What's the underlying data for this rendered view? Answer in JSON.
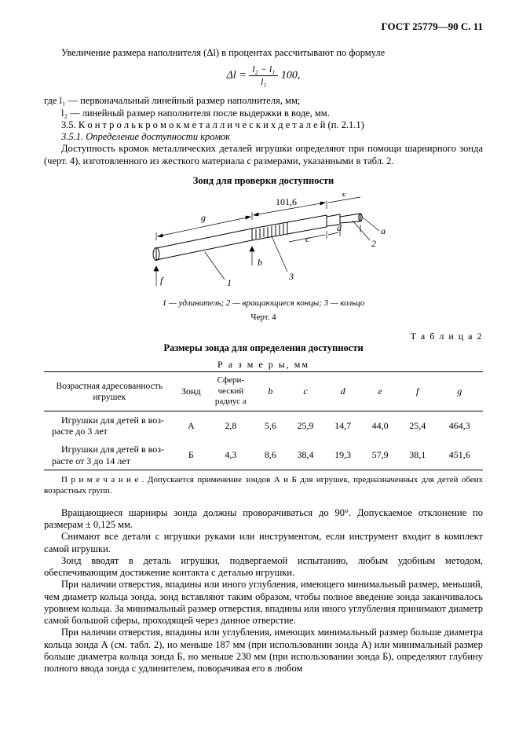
{
  "header": "ГОСТ 25779—90 С. 11",
  "p1": "Увеличение размера наполнителя (Δl) в процентах рассчитывают по формуле",
  "formula_lhs": "Δl = ",
  "formula_num": "l₂ − l₁",
  "formula_den": "l₁",
  "formula_rhs": " 100,",
  "p2a": "где l₁ — первоначальный линейный размер наполнителя, мм;",
  "p2b": "l₂ — линейный размер наполнителя после выдержки в воде, мм.",
  "p3": "3.5. К о н т р о л ь   к р о м о к   м е т а л л и ч е с к и х   д е т а л е й  (п. 2.1.1)",
  "p4": "3.5.1. Определение доступности кромок",
  "p5": "Доступность кромок металлических деталей игрушки определяют при помощи шарнирного зонда (черт. 4), изготовленного из жесткого материала с размерами, указанными в табл. 2.",
  "figcap": "Зонд для проверки доступности",
  "figsub": "1 — удлинитель; 2 — вращающиеся концы; 3 — кольцо",
  "figno": "Черт. 4",
  "tablabel": "Т а б л и ц а  2",
  "tabcap": "Размеры зонда для определения доступности",
  "razm": "Р а з м е р ы, мм",
  "table": {
    "header": [
      "Возрастная адресованность игрушек",
      "Зонд",
      "Сфери-\nческий\nрадиус a",
      "b",
      "c",
      "d",
      "e",
      "f",
      "g"
    ],
    "rows": [
      [
        "Игрушки для детей в воз-\nрасте до 3 лет",
        "А",
        "2,8",
        "5,6",
        "25,9",
        "14,7",
        "44,0",
        "25,4",
        "464,3"
      ],
      [
        "Игрушки для детей в воз-\nрасте от 3 до 14 лет",
        "Б",
        "4,3",
        "8,6",
        "38,4",
        "19,3",
        "57,9",
        "38,1",
        "451,6"
      ]
    ]
  },
  "note": "П р и м е ч а н и е . Допускается применение зондов А и Б для игрушек, предназначенных для детей обеих возрастных групп.",
  "p6": "Вращающиеся шарниры зонда должны проворачиваться до 90°. Допускаемое отклонение по размерам ± 0,125 мм.",
  "p7": "Снимают все детали с игрушки руками или инструментом, если инструмент входит в комплект самой игрушки.",
  "p8": "Зонд вводят в деталь игрушки, подвергаемой испытанию, любым удобным методом, обеспечивающим достижение контакта с деталью игрушки.",
  "p9": "При наличии отверстия, впадины или иного углубления, имеющего минимальный размер, меньший, чем диаметр кольца зонда, зонд вставляют таким образом, чтобы полное введение зонда заканчивалось уровнем кольца. За минимальный размер отверстия, впадины или иного углубления принимают диаметр самой большой сферы, проходящей через данное отверстие.",
  "p10": "При наличии отверстия, впадины или углубления,  имеющих минимальный размер больше диаметра кольца зонда А (см. табл. 2), но меньше 187 мм (при использовании зонда А) или минимальный размер больше диаметра кольца зонда Б, но меньше 230 мм (при использовании зонда Б), определяют глубину полного ввода зонда с удлинителем, поворачивая его в любом",
  "fig": {
    "dim_g": "g",
    "dim_101": "101,6",
    "dim_e": "e",
    "dim_d": "d",
    "dim_c": "c",
    "dim_a": "a",
    "dim_b": "b",
    "dim_f": "f",
    "lbl1": "1",
    "lbl2": "2",
    "lbl3": "3"
  }
}
